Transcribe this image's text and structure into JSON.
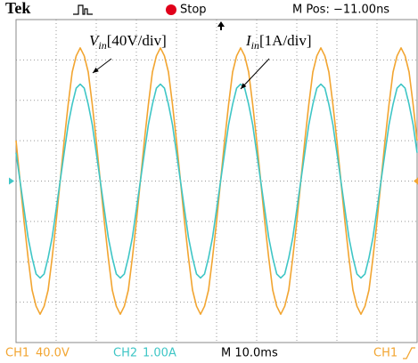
{
  "chart_data": {
    "type": "line",
    "brand": "Tek",
    "status": "Stop",
    "position": "M Pos: −11.00ns",
    "annotations": [
      {
        "symbol": "V",
        "subscript": "in",
        "text": "[40V/div]"
      },
      {
        "symbol": "I",
        "subscript": "in",
        "text": "[1A/div]"
      }
    ],
    "x": [
      0,
      0.1,
      0.2,
      0.3,
      0.4,
      0.5,
      0.6,
      0.7,
      0.8,
      0.9,
      1,
      1.1,
      1.2,
      1.3,
      1.4,
      1.5,
      1.6,
      1.7,
      1.8,
      1.9,
      2,
      2.1,
      2.2,
      2.3,
      2.4,
      2.5,
      2.6,
      2.7,
      2.8,
      2.9,
      3,
      3.1,
      3.2,
      3.3,
      3.4,
      3.5,
      3.6,
      3.7,
      3.8,
      3.9,
      4,
      4.1,
      4.2,
      4.3,
      4.4,
      4.5,
      4.6,
      4.7,
      4.8,
      4.9,
      5,
      5.1,
      5.2,
      5.3,
      5.4,
      5.5,
      5.6,
      5.7,
      5.8,
      5.9,
      6,
      6.1,
      6.2,
      6.3,
      6.4,
      6.5,
      6.6,
      6.7,
      6.8,
      6.9,
      7,
      7.1,
      7.2,
      7.3,
      7.4,
      7.5,
      7.6,
      7.7,
      7.8,
      7.9,
      8,
      8.1,
      8.2,
      8.3,
      8.4,
      8.5,
      8.6,
      8.7,
      8.8,
      8.9,
      9,
      9.1,
      9.2,
      9.3,
      9.4,
      9.5,
      9.6,
      9.7,
      9.8,
      9.9,
      10
    ],
    "series": [
      {
        "name": "CH1",
        "scale": "40.0V",
        "color": "#f2a531",
        "values": [
          1.0,
          0,
          -1.0,
          -1.9,
          -2.7,
          -3.1,
          -3.3,
          -3.1,
          -2.7,
          -1.9,
          -1.0,
          0,
          1.0,
          1.9,
          2.7,
          3.1,
          3.3,
          3.1,
          2.7,
          1.9,
          1.0,
          0,
          -1.0,
          -1.9,
          -2.7,
          -3.1,
          -3.3,
          -3.1,
          -2.7,
          -1.9,
          -1.0,
          0,
          1.0,
          1.9,
          2.7,
          3.1,
          3.3,
          3.1,
          2.7,
          1.9,
          1.0,
          0,
          -1.0,
          -1.9,
          -2.7,
          -3.1,
          -3.3,
          -3.1,
          -2.7,
          -1.9,
          -1.0,
          0,
          1.0,
          1.9,
          2.7,
          3.1,
          3.3,
          3.1,
          2.7,
          1.9,
          1.0,
          0,
          -1.0,
          -1.9,
          -2.7,
          -3.1,
          -3.3,
          -3.1,
          -2.7,
          -1.9,
          -1.0,
          0,
          1.0,
          1.9,
          2.7,
          3.1,
          3.3,
          3.1,
          2.7,
          1.9,
          1.0,
          0,
          -1.0,
          -1.9,
          -2.7,
          -3.1,
          -3.3,
          -3.1,
          -2.7,
          -1.9,
          -1.0,
          0,
          1.0,
          1.9,
          2.7,
          3.1,
          3.3,
          3.1,
          2.7,
          1.9,
          1.0
        ]
      },
      {
        "name": "CH2",
        "scale": "1.00A",
        "color": "#3fc6c6",
        "values": [
          0.7,
          0,
          -0.7,
          -1.4,
          -1.9,
          -2.3,
          -2.4,
          -2.3,
          -1.9,
          -1.4,
          -0.7,
          0,
          0.7,
          1.4,
          1.9,
          2.3,
          2.4,
          2.3,
          1.9,
          1.4,
          0.7,
          0,
          -0.7,
          -1.4,
          -1.9,
          -2.3,
          -2.4,
          -2.3,
          -1.9,
          -1.4,
          -0.7,
          0,
          0.7,
          1.4,
          1.9,
          2.3,
          2.4,
          2.3,
          1.9,
          1.4,
          0.7,
          0,
          -0.7,
          -1.4,
          -1.9,
          -2.3,
          -2.4,
          -2.3,
          -1.9,
          -1.4,
          -0.7,
          0,
          0.7,
          1.4,
          1.9,
          2.3,
          2.4,
          2.3,
          1.9,
          1.4,
          0.7,
          0,
          -0.7,
          -1.4,
          -1.9,
          -2.3,
          -2.4,
          -2.3,
          -1.9,
          -1.4,
          -0.7,
          0,
          0.7,
          1.4,
          1.9,
          2.3,
          2.4,
          2.3,
          1.9,
          1.4,
          0.7,
          0,
          -0.7,
          -1.4,
          -1.9,
          -2.3,
          -2.4,
          -2.3,
          -1.9,
          -1.4,
          -0.7,
          0,
          0.7,
          1.4,
          1.9,
          2.3,
          2.4,
          2.3,
          1.9,
          1.4,
          0.7
        ]
      }
    ],
    "timebase": "M 10.0ms",
    "trigger": "CH1",
    "xlim": [
      0,
      10
    ],
    "xticks": [
      0,
      1,
      2,
      3,
      4,
      5,
      6,
      7,
      8,
      9,
      10
    ],
    "ylim": [
      -4,
      4
    ],
    "yticks": [
      -4,
      -3,
      -2,
      -1,
      0,
      1,
      2,
      3,
      4
    ],
    "grid": true
  }
}
